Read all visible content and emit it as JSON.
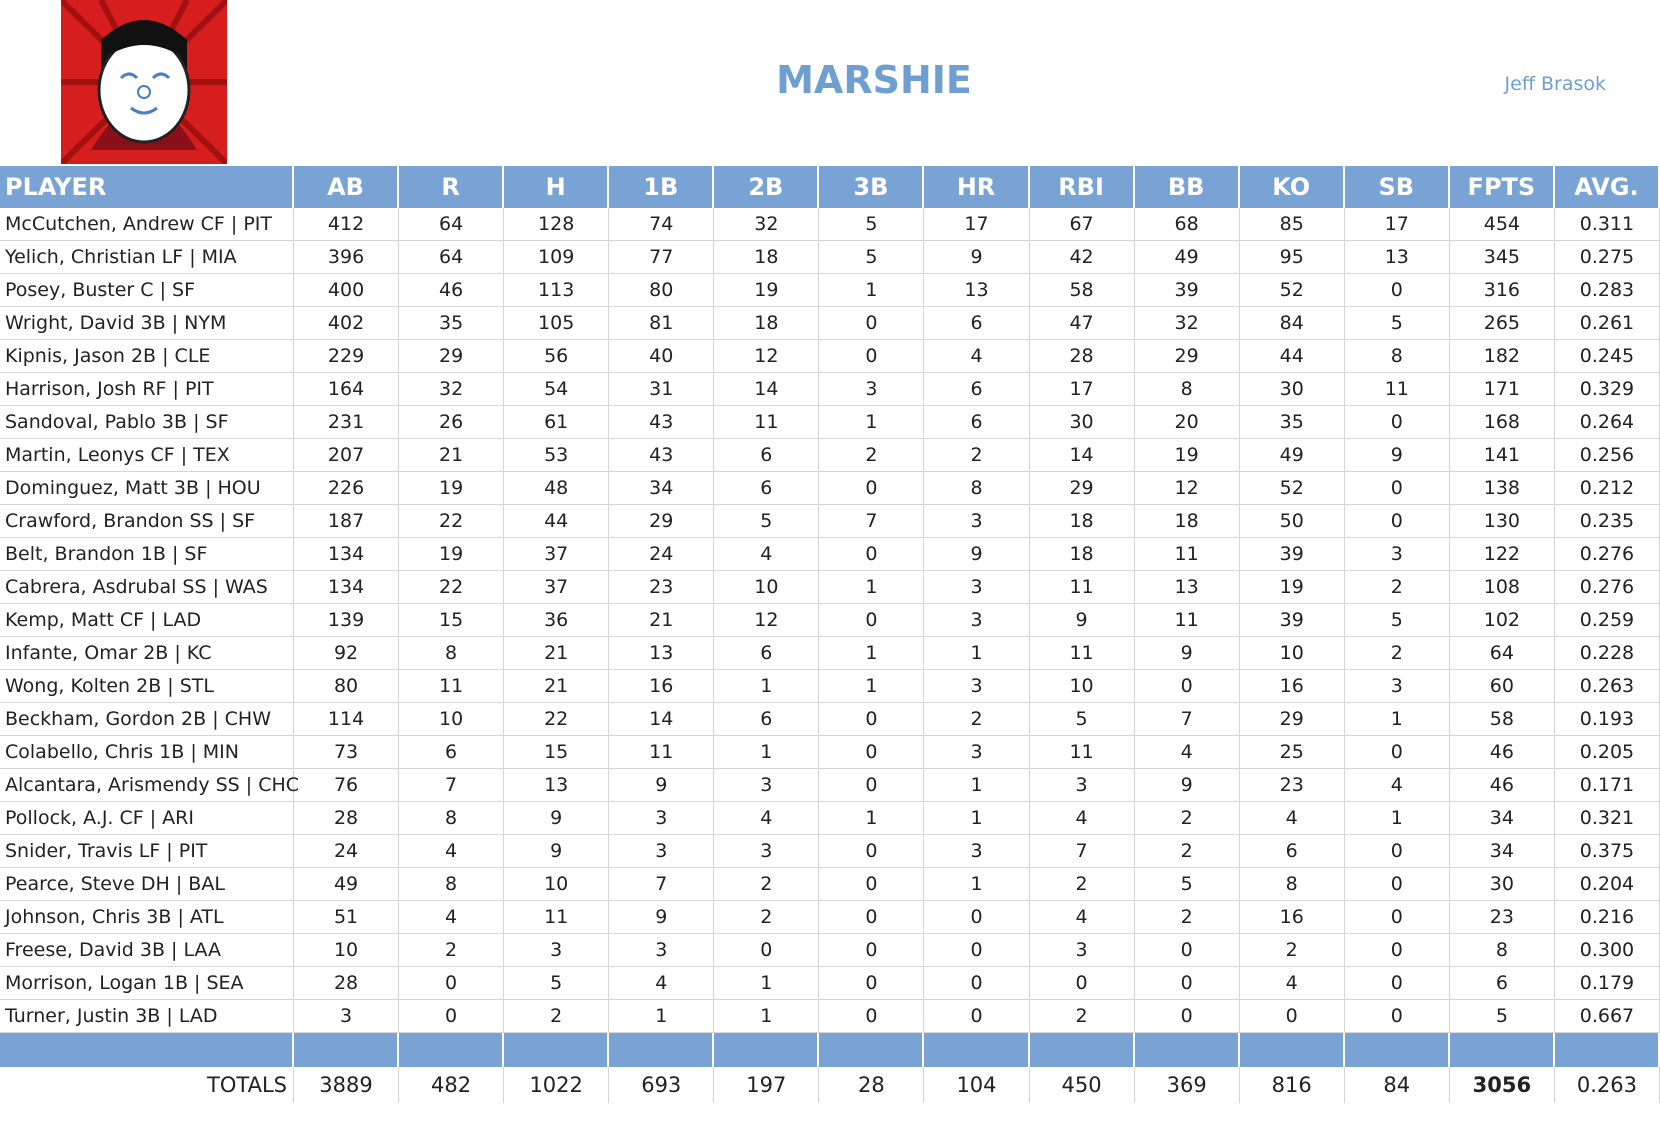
{
  "header": {
    "title": "MARSHIE",
    "owner": "Jeff Brasok"
  },
  "table": {
    "columns": [
      "PLAYER",
      "AB",
      "R",
      "H",
      "1B",
      "2B",
      "3B",
      "HR",
      "RBI",
      "BB",
      "KO",
      "SB",
      "FPTS",
      "AVG."
    ],
    "rows": [
      [
        "McCutchen, Andrew CF | PIT",
        412,
        64,
        128,
        74,
        32,
        5,
        17,
        67,
        68,
        85,
        17,
        454,
        "0.311"
      ],
      [
        "Yelich, Christian LF | MIA",
        396,
        64,
        109,
        77,
        18,
        5,
        9,
        42,
        49,
        95,
        13,
        345,
        "0.275"
      ],
      [
        "Posey, Buster C | SF",
        400,
        46,
        113,
        80,
        19,
        1,
        13,
        58,
        39,
        52,
        0,
        316,
        "0.283"
      ],
      [
        "Wright, David 3B | NYM",
        402,
        35,
        105,
        81,
        18,
        0,
        6,
        47,
        32,
        84,
        5,
        265,
        "0.261"
      ],
      [
        "Kipnis, Jason 2B | CLE",
        229,
        29,
        56,
        40,
        12,
        0,
        4,
        28,
        29,
        44,
        8,
        182,
        "0.245"
      ],
      [
        "Harrison, Josh RF | PIT",
        164,
        32,
        54,
        31,
        14,
        3,
        6,
        17,
        8,
        30,
        11,
        171,
        "0.329"
      ],
      [
        "Sandoval, Pablo 3B | SF",
        231,
        26,
        61,
        43,
        11,
        1,
        6,
        30,
        20,
        35,
        0,
        168,
        "0.264"
      ],
      [
        "Martin, Leonys CF | TEX",
        207,
        21,
        53,
        43,
        6,
        2,
        2,
        14,
        19,
        49,
        9,
        141,
        "0.256"
      ],
      [
        "Dominguez, Matt 3B | HOU",
        226,
        19,
        48,
        34,
        6,
        0,
        8,
        29,
        12,
        52,
        0,
        138,
        "0.212"
      ],
      [
        "Crawford, Brandon SS | SF",
        187,
        22,
        44,
        29,
        5,
        7,
        3,
        18,
        18,
        50,
        0,
        130,
        "0.235"
      ],
      [
        "Belt, Brandon 1B | SF",
        134,
        19,
        37,
        24,
        4,
        0,
        9,
        18,
        11,
        39,
        3,
        122,
        "0.276"
      ],
      [
        "Cabrera, Asdrubal SS | WAS",
        134,
        22,
        37,
        23,
        10,
        1,
        3,
        11,
        13,
        19,
        2,
        108,
        "0.276"
      ],
      [
        "Kemp, Matt CF | LAD",
        139,
        15,
        36,
        21,
        12,
        0,
        3,
        9,
        11,
        39,
        5,
        102,
        "0.259"
      ],
      [
        "Infante, Omar 2B | KC",
        92,
        8,
        21,
        13,
        6,
        1,
        1,
        11,
        9,
        10,
        2,
        64,
        "0.228"
      ],
      [
        "Wong, Kolten 2B | STL",
        80,
        11,
        21,
        16,
        1,
        1,
        3,
        10,
        0,
        16,
        3,
        60,
        "0.263"
      ],
      [
        "Beckham, Gordon 2B | CHW",
        114,
        10,
        22,
        14,
        6,
        0,
        2,
        5,
        7,
        29,
        1,
        58,
        "0.193"
      ],
      [
        "Colabello, Chris 1B | MIN",
        73,
        6,
        15,
        11,
        1,
        0,
        3,
        11,
        4,
        25,
        0,
        46,
        "0.205"
      ],
      [
        "Alcantara, Arismendy SS | CHC",
        76,
        7,
        13,
        9,
        3,
        0,
        1,
        3,
        9,
        23,
        4,
        46,
        "0.171"
      ],
      [
        "Pollock, A.J. CF | ARI",
        28,
        8,
        9,
        3,
        4,
        1,
        1,
        4,
        2,
        4,
        1,
        34,
        "0.321"
      ],
      [
        "Snider, Travis LF | PIT",
        24,
        4,
        9,
        3,
        3,
        0,
        3,
        7,
        2,
        6,
        0,
        34,
        "0.375"
      ],
      [
        "Pearce, Steve DH | BAL",
        49,
        8,
        10,
        7,
        2,
        0,
        1,
        2,
        5,
        8,
        0,
        30,
        "0.204"
      ],
      [
        "Johnson, Chris 3B | ATL",
        51,
        4,
        11,
        9,
        2,
        0,
        0,
        4,
        2,
        16,
        0,
        23,
        "0.216"
      ],
      [
        "Freese, David 3B | LAA",
        10,
        2,
        3,
        3,
        0,
        0,
        0,
        3,
        0,
        2,
        0,
        8,
        "0.300"
      ],
      [
        "Morrison, Logan 1B | SEA",
        28,
        0,
        5,
        4,
        1,
        0,
        0,
        0,
        0,
        4,
        0,
        6,
        "0.179"
      ],
      [
        "Turner, Justin 3B | LAD",
        3,
        0,
        2,
        1,
        1,
        0,
        0,
        2,
        0,
        0,
        0,
        5,
        "0.667"
      ]
    ],
    "totals": [
      "TOTALS",
      3889,
      482,
      1022,
      693,
      197,
      28,
      104,
      450,
      369,
      816,
      84,
      3056,
      "0.263"
    ]
  }
}
